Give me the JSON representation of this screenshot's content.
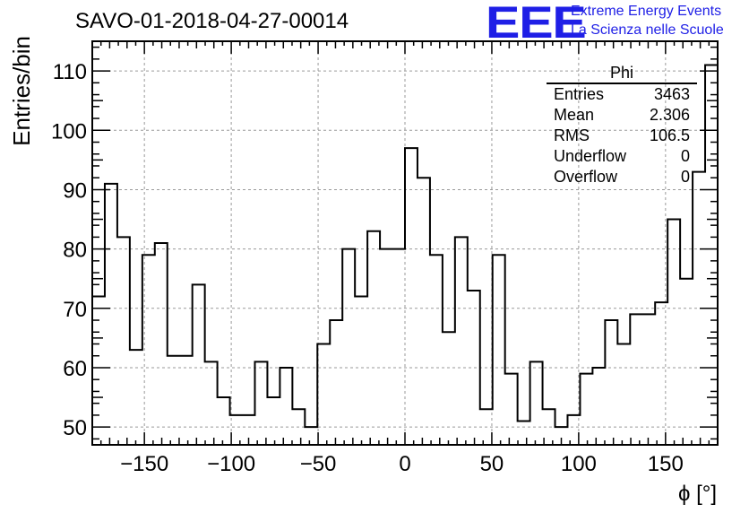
{
  "title": "SAVO-01-2018-04-27-00014",
  "logo": {
    "mark": "EEE",
    "line1": "Extreme Energy Events",
    "line2": "La Scienza nelle Scuole",
    "color": "#1f1fe6"
  },
  "stats": {
    "name": "Phi",
    "rows": [
      {
        "label": "Entries",
        "value": "3463"
      },
      {
        "label": "Mean",
        "value": "2.306"
      },
      {
        "label": "RMS",
        "value": "106.5"
      },
      {
        "label": "Underflow",
        "value": "0"
      },
      {
        "label": "Overflow",
        "value": "0"
      }
    ]
  },
  "chart_data": {
    "type": "bar",
    "style": "step-histogram",
    "title": "SAVO-01-2018-04-27-00014",
    "xlabel": "ϕ [°]",
    "ylabel": "Entries/bin",
    "xlim": [
      -180,
      180
    ],
    "ylim": [
      47,
      115
    ],
    "bin_width": 7.2,
    "xticks": [
      -150,
      -100,
      -50,
      0,
      50,
      100,
      150
    ],
    "xtick_labels": [
      "−150",
      "−100",
      "−50",
      "0",
      "50",
      "100",
      "150"
    ],
    "yticks": [
      50,
      60,
      70,
      80,
      90,
      100,
      110
    ],
    "yticks_labels": [
      "50",
      "60",
      "70",
      "80",
      "90",
      "100",
      "110"
    ],
    "grid": true,
    "values": [
      72,
      91,
      82,
      63,
      79,
      81,
      62,
      62,
      74,
      61,
      55,
      52,
      52,
      61,
      55,
      60,
      53,
      50,
      64,
      68,
      80,
      72,
      83,
      80,
      80,
      97,
      92,
      79,
      66,
      82,
      73,
      53,
      79,
      59,
      51,
      61,
      53,
      50,
      52,
      59,
      60,
      68,
      64,
      69,
      69,
      71,
      85,
      75,
      93,
      111
    ]
  }
}
